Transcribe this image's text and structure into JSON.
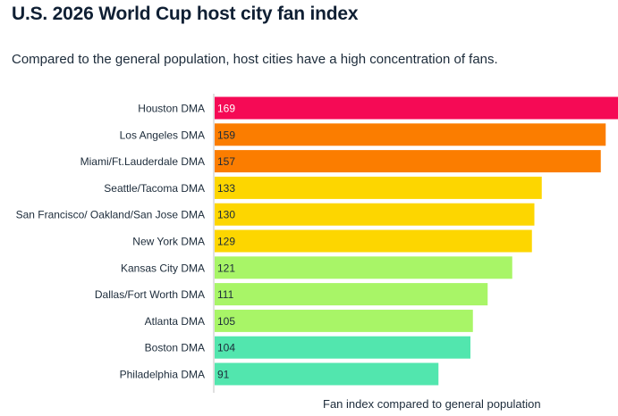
{
  "header": {
    "title": "U.S. 2026 World Cup host city fan index",
    "subtitle": "Compared to the general population, host cities have a high concentration of fans."
  },
  "chart_data": {
    "type": "bar",
    "orientation": "horizontal",
    "title": "U.S. 2026 World Cup host city fan index",
    "subtitle": "Compared to the general population, host cities have a high concentration of fans.",
    "xlabel": "Fan index compared to general population",
    "ylabel": "",
    "categories": [
      "Houston DMA",
      "Los Angeles DMA",
      "Miami/Ft.Lauderdale DMA",
      "Seattle/Tacoma DMA",
      "San Francisco/ Oakland/San Jose DMA",
      "New York DMA",
      "Kansas City DMA",
      "Dallas/Fort Worth DMA",
      "Atlanta DMA",
      "Boston DMA",
      "Philadelphia DMA"
    ],
    "values": [
      169,
      159,
      157,
      133,
      130,
      129,
      121,
      111,
      105,
      104,
      91
    ],
    "colors": [
      "#F50A55",
      "#FB7D00",
      "#FB7D00",
      "#FDD600",
      "#FDD600",
      "#FDD600",
      "#A8F567",
      "#A8F567",
      "#A8F567",
      "#52E6AE",
      "#52E6AE"
    ],
    "label_colors": [
      "#ffffff",
      "#1c2b3a",
      "#1c2b3a",
      "#1c2b3a",
      "#1c2b3a",
      "#1c2b3a",
      "#1c2b3a",
      "#1c2b3a",
      "#1c2b3a",
      "#1c2b3a",
      "#1c2b3a"
    ],
    "grid": false,
    "legend": "none"
  }
}
